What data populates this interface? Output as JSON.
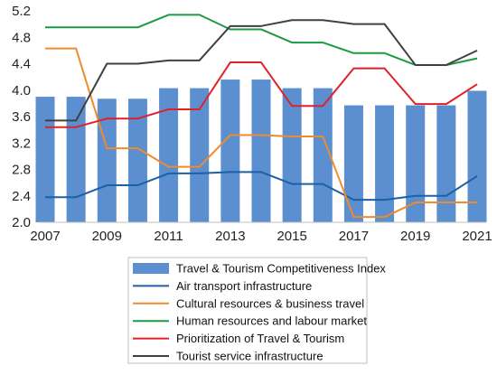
{
  "chart_data": {
    "type": "bar",
    "title": "",
    "xlabel": "",
    "ylabel": "",
    "x": [
      2007,
      2008,
      2009,
      2010,
      2011,
      2012,
      2013,
      2014,
      2015,
      2016,
      2017,
      2018,
      2019,
      2020,
      2021
    ],
    "x_tick_labels": [
      "2007",
      "2009",
      "2011",
      "2013",
      "2015",
      "2017",
      "2019",
      "2021"
    ],
    "y_tick_labels": [
      "2.0",
      "2.4",
      "2.8",
      "3.2",
      "3.6",
      "4.0",
      "4.4",
      "4.8",
      "5.2"
    ],
    "ylim": [
      2.0,
      5.2
    ],
    "y_ticks": [
      2.0,
      2.4,
      2.8,
      3.2,
      3.6,
      4.0,
      4.4,
      4.8,
      5.2
    ],
    "x_ticks": [
      2007,
      2009,
      2011,
      2013,
      2015,
      2017,
      2019,
      2021
    ],
    "grid": false,
    "legend_position": "bottom",
    "bar_series": {
      "name": "Travel & Tourism Competitiveness Index",
      "color": "#5b8fcf",
      "values": [
        3.9,
        3.9,
        3.87,
        3.87,
        4.03,
        4.03,
        4.16,
        4.16,
        4.03,
        4.03,
        3.77,
        3.77,
        3.77,
        3.77,
        3.99
      ]
    },
    "line_series": [
      {
        "name": "Air transport infrastructure",
        "color": "#1f5fa6",
        "values": [
          2.38,
          2.38,
          2.56,
          2.56,
          2.74,
          2.74,
          2.76,
          2.76,
          2.58,
          2.58,
          2.34,
          2.34,
          2.4,
          2.4,
          2.7
        ]
      },
      {
        "name": "Cultural resources & business travel",
        "color": "#f08a2c",
        "values": [
          4.63,
          4.63,
          3.12,
          3.12,
          2.84,
          2.84,
          3.32,
          3.32,
          3.3,
          3.3,
          2.08,
          2.08,
          2.3,
          2.3,
          2.3
        ]
      },
      {
        "name": "Human resources and labour market",
        "color": "#1c9a45",
        "values": [
          4.95,
          4.95,
          4.95,
          4.95,
          5.14,
          5.14,
          4.92,
          4.92,
          4.72,
          4.72,
          4.56,
          4.56,
          4.38,
          4.38,
          4.48
        ]
      },
      {
        "name": "Prioritization of Travel & Tourism",
        "color": "#e0202a",
        "values": [
          3.44,
          3.44,
          3.57,
          3.57,
          3.71,
          3.71,
          4.42,
          4.42,
          3.76,
          3.76,
          4.33,
          4.33,
          3.79,
          3.79,
          4.09
        ]
      },
      {
        "name": "Tourist service infrastructure",
        "color": "#404040",
        "values": [
          3.54,
          3.54,
          4.4,
          4.4,
          4.45,
          4.45,
          4.97,
          4.97,
          5.06,
          5.06,
          5.0,
          5.0,
          4.38,
          4.38,
          4.6
        ]
      }
    ]
  }
}
